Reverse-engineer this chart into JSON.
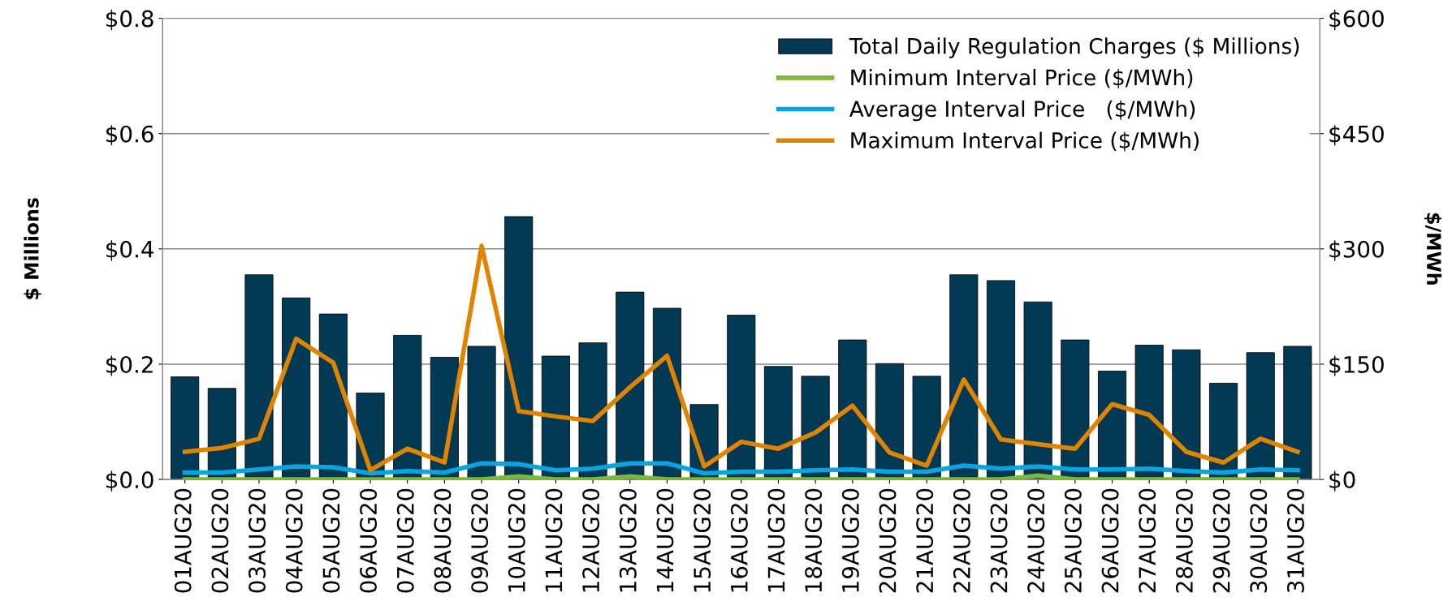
{
  "chart_data": {
    "type": "bar",
    "ylabel": "$ Millions",
    "y2label": "$/MWh",
    "categories": [
      "01AUG20",
      "02AUG20",
      "03AUG20",
      "04AUG20",
      "05AUG20",
      "06AUG20",
      "07AUG20",
      "08AUG20",
      "09AUG20",
      "10AUG20",
      "11AUG20",
      "12AUG20",
      "13AUG20",
      "14AUG20",
      "15AUG20",
      "16AUG20",
      "17AUG20",
      "18AUG20",
      "19AUG20",
      "20AUG20",
      "21AUG20",
      "22AUG20",
      "23AUG20",
      "24AUG20",
      "25AUG20",
      "26AUG20",
      "27AUG20",
      "28AUG20",
      "29AUG20",
      "30AUG20",
      "31AUG20"
    ],
    "series": [
      {
        "name": "Total Daily Regulation Charges ($ Millions)",
        "color": "#023a56",
        "values": [
          0.178,
          0.158,
          0.355,
          0.315,
          0.287,
          0.15,
          0.25,
          0.212,
          0.231,
          0.456,
          0.214,
          0.237,
          0.325,
          0.297,
          0.13,
          0.285,
          0.196,
          0.179,
          0.242,
          0.201,
          0.179,
          0.355,
          0.345,
          0.308,
          0.242,
          0.188,
          0.233,
          0.225,
          0.167,
          0.22,
          0.231
        ]
      },
      {
        "name": "Minimum Interval Price ($/MWh)",
        "type": "line",
        "axis": "y2",
        "color": "#7cb83a",
        "values": [
          0,
          0,
          0,
          0,
          0,
          0,
          0,
          0,
          0,
          4,
          0,
          0,
          4,
          0,
          0,
          0,
          0,
          0,
          0,
          0,
          0,
          0,
          0,
          5,
          0,
          0,
          0,
          0,
          0,
          0,
          0
        ]
      },
      {
        "name": "Average Interval Price   ($/MWh)",
        "type": "line",
        "axis": "y2",
        "color": "#0aa4e0",
        "values": [
          9,
          9,
          13,
          17,
          16,
          8,
          11,
          9,
          21,
          20,
          12,
          14,
          21,
          21,
          8,
          10,
          10,
          12,
          13,
          10,
          10,
          18,
          14,
          17,
          13,
          13,
          14,
          11,
          9,
          13,
          12
        ]
      },
      {
        "name": "Maximum Interval Price ($/MWh)",
        "type": "line",
        "axis": "y2",
        "color": "#e08400",
        "values": [
          36,
          41,
          53,
          183,
          152,
          12,
          40,
          22,
          304,
          89,
          82,
          76,
          120,
          161,
          17,
          49,
          40,
          61,
          96,
          35,
          18,
          130,
          52,
          46,
          40,
          98,
          84,
          36,
          22,
          53,
          36
        ]
      }
    ],
    "ylim": [
      0,
      0.8
    ],
    "yticks": [
      {
        "value": 0,
        "label": "$0.0"
      },
      {
        "value": 0.2,
        "label": "$0.2"
      },
      {
        "value": 0.4,
        "label": "$0.4"
      },
      {
        "value": 0.6,
        "label": "$0.6"
      },
      {
        "value": 0.8,
        "label": "$0.8"
      }
    ],
    "y2lim": [
      0,
      600
    ],
    "y2ticks": [
      {
        "value": 0,
        "label": "$0"
      },
      {
        "value": 150,
        "label": "$150"
      },
      {
        "value": 300,
        "label": "$300"
      },
      {
        "value": 450,
        "label": "$450"
      },
      {
        "value": 600,
        "label": "$600"
      }
    ],
    "grid": "y",
    "legend": "top right",
    "line_style": "solid",
    "marker": "none"
  }
}
